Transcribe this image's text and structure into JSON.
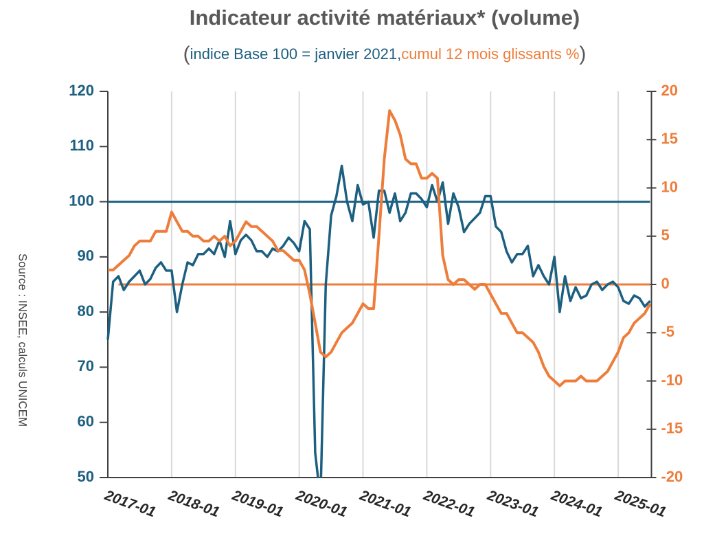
{
  "chart_data": {
    "type": "line",
    "title": "Indicateur activité matériaux* (volume)",
    "subtitle_brackets": [
      "(",
      ")"
    ],
    "source": "Source : INSEE, calculs UNICEM",
    "categories": [
      "2017-01",
      null,
      null,
      null,
      null,
      null,
      null,
      null,
      null,
      null,
      null,
      null,
      "2018-01",
      null,
      null,
      null,
      null,
      null,
      null,
      null,
      null,
      null,
      null,
      null,
      "2019-01",
      null,
      null,
      null,
      null,
      null,
      null,
      null,
      null,
      null,
      null,
      null,
      "2020-01",
      null,
      null,
      null,
      null,
      null,
      null,
      null,
      null,
      null,
      null,
      null,
      "2021-01",
      null,
      null,
      null,
      null,
      null,
      null,
      null,
      null,
      null,
      null,
      null,
      "2022-01",
      null,
      null,
      null,
      null,
      null,
      null,
      null,
      null,
      null,
      null,
      null,
      "2023-01",
      null,
      null,
      null,
      null,
      null,
      null,
      null,
      null,
      null,
      null,
      null,
      "2024-01",
      null,
      null,
      null,
      null,
      null,
      null,
      null,
      null,
      null,
      null,
      null,
      "2025-01",
      null,
      null,
      null,
      null,
      null,
      null
    ],
    "series": [
      {
        "name": "indice Base 100 = janvier 2021,",
        "color": "#1c5f80",
        "axis": "y",
        "values": [
          75,
          85.5,
          86.5,
          84,
          85.5,
          86.5,
          87.5,
          85,
          86,
          88,
          89,
          87.5,
          87.5,
          80,
          85,
          89,
          88.5,
          90.5,
          90.5,
          91.5,
          90.5,
          93,
          90,
          96.5,
          90.5,
          93,
          94,
          93,
          91,
          91,
          90,
          91.5,
          91,
          92,
          93.5,
          92.5,
          91,
          96.5,
          95,
          54.5,
          46,
          85,
          97.5,
          101,
          106.5,
          100,
          96.5,
          103,
          99.5,
          100,
          93.5,
          102,
          102,
          98,
          101.5,
          96.5,
          98,
          101.5,
          101.5,
          100.5,
          99,
          103,
          100,
          103.5,
          96,
          101.5,
          99,
          94.5,
          96,
          97,
          98,
          101,
          101,
          95.5,
          94.5,
          91,
          89,
          90.5,
          90.5,
          92,
          86.5,
          88.5,
          86.5,
          85,
          90,
          80,
          86.5,
          82,
          84.5,
          82.5,
          83,
          85,
          85.5,
          84,
          85,
          85.5,
          84.5,
          82,
          81.5,
          83,
          82.5,
          81,
          82
        ]
      },
      {
        "name": "cumul 12 mois glissants %",
        "color": "#ee7d3b",
        "axis": "y2",
        "values": [
          1.5,
          1.5,
          2,
          2.5,
          3,
          4,
          4.5,
          4.5,
          4.5,
          5.5,
          5.5,
          5.5,
          7.5,
          6.5,
          5.5,
          5.5,
          5,
          5,
          4.5,
          4.5,
          5,
          4.5,
          5,
          4,
          4.5,
          5.5,
          6.5,
          6,
          6,
          5.5,
          5,
          4.5,
          3.5,
          3.5,
          3,
          2.5,
          2.5,
          1.5,
          -1,
          -4,
          -7,
          -7.5,
          -7,
          -6,
          -5,
          -4.5,
          -4,
          -3,
          -2,
          -2.5,
          -2.5,
          5,
          13,
          18,
          17,
          15.5,
          13,
          12.5,
          12.5,
          11,
          11,
          11.5,
          11,
          3,
          0.5,
          0,
          0.5,
          0.5,
          0,
          -0.5,
          0,
          0,
          -1,
          -2,
          -3,
          -3,
          -4,
          -5,
          -5,
          -5.5,
          -6,
          -7,
          -8.5,
          -9.5,
          -10,
          -10.5,
          -10,
          -10,
          -10,
          -9.5,
          -10,
          -10,
          -10,
          -9.5,
          -9,
          -8,
          -7,
          -5.5,
          -5,
          -4,
          -3.5,
          -3,
          -2
        ]
      }
    ],
    "reference_lines": [
      {
        "value": 100,
        "axis": "y",
        "color": "#1c5f80"
      },
      {
        "value": 0,
        "axis": "y2",
        "color": "#ee7d3b"
      }
    ],
    "ylim": [
      50,
      120
    ],
    "yticks": [
      50,
      60,
      70,
      80,
      90,
      100,
      110,
      120
    ],
    "y2lim": [
      -20,
      20
    ],
    "y2ticks": [
      -20,
      -15,
      -10,
      -5,
      0,
      5,
      10,
      15,
      20
    ],
    "grid": "x"
  }
}
